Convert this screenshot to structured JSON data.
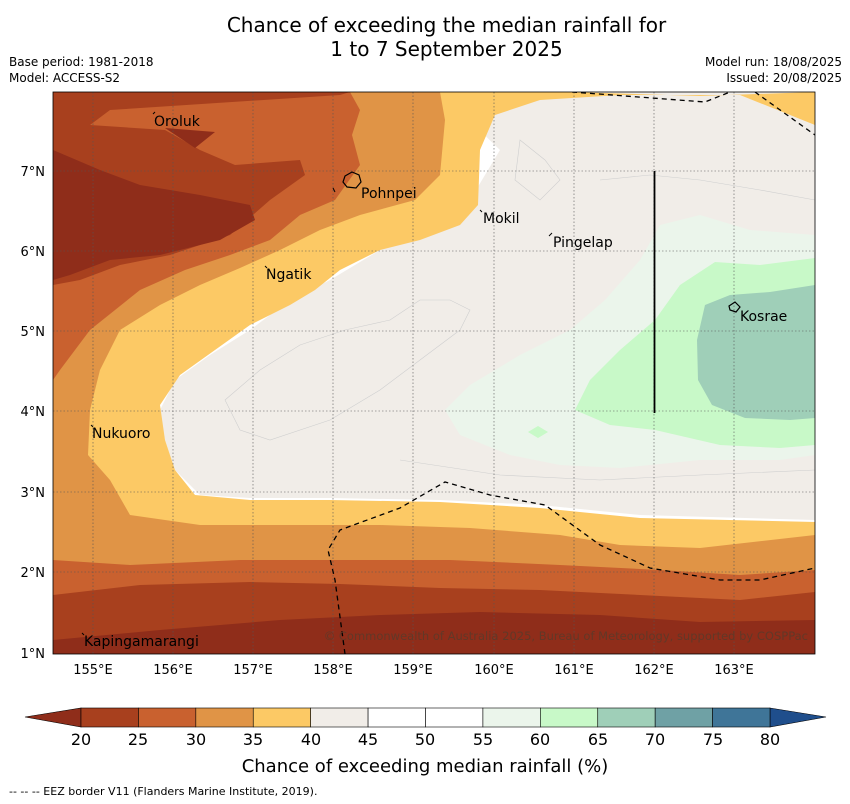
{
  "title": {
    "line1": "Chance of exceeding the median rainfall for",
    "line2": "1 to 7 September 2025"
  },
  "meta": {
    "base_period": "Base period: 1981-2018",
    "model": "Model: ACCESS-S2",
    "model_run": "Model run: 18/08/2025",
    "issued": "Issued: 20/08/2025"
  },
  "map": {
    "lon_ticks": [
      "155°E",
      "156°E",
      "157°E",
      "158°E",
      "159°E",
      "160°E",
      "161°E",
      "162°E",
      "163°E"
    ],
    "lat_ticks": [
      "7°N",
      "6°N",
      "5°N",
      "4°N",
      "3°N",
      "2°N",
      "1°N"
    ],
    "places": [
      {
        "name": "Oroluk"
      },
      {
        "name": "Pohnpei"
      },
      {
        "name": "Mokil"
      },
      {
        "name": "Pingelap"
      },
      {
        "name": "Ngatik"
      },
      {
        "name": "Kosrae"
      },
      {
        "name": "Nukuoro"
      },
      {
        "name": "Kapingamarangi"
      }
    ],
    "copyright": "© Commonwealth of Australia 2025, Bureau of Meteorology, supported by COSPPac"
  },
  "colorbar": {
    "ticks": [
      "20",
      "25",
      "30",
      "35",
      "40",
      "45",
      "50",
      "55",
      "60",
      "65",
      "70",
      "75",
      "80"
    ],
    "colors": [
      "#a8401e",
      "#c9612f",
      "#e09446",
      "#fcc965",
      "#f1ede8",
      "#ffffff",
      "#ffffff",
      "#ebf5eb",
      "#c8f9c8",
      "#9fcfb8",
      "#6fa1a5",
      "#3f7598"
    ],
    "under_color": "#8f2d1a",
    "over_color": "#1f4e8c",
    "label": "Chance of exceeding median rainfall (%)"
  },
  "footnote": "--  --  -- EEZ border V11 (Flanders Marine Institute, 2019)."
}
